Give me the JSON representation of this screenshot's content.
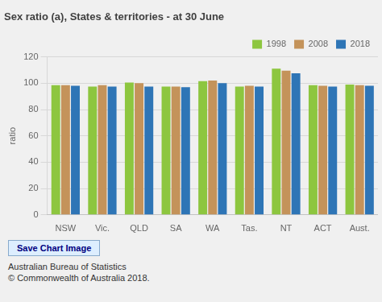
{
  "chart_data": {
    "type": "bar",
    "title": "Sex ratio (a), States & territories - at 30 June",
    "ylabel": "ratio",
    "categories": [
      "NSW",
      "Vic.",
      "QLD",
      "SA",
      "WA",
      "Tas.",
      "NT",
      "ACT",
      "Aust."
    ],
    "series": [
      {
        "name": "1998",
        "color": "#8DC63F",
        "values": [
          98.5,
          97.5,
          100.5,
          97.5,
          101.5,
          97.5,
          111.0,
          98.5,
          99.0
        ]
      },
      {
        "name": "2008",
        "color": "#C4935A",
        "values": [
          98.5,
          98.5,
          100.0,
          97.5,
          102.0,
          98.0,
          109.5,
          98.0,
          98.5
        ]
      },
      {
        "name": "2018",
        "color": "#2E75B6",
        "values": [
          98.0,
          97.5,
          97.5,
          97.0,
          100.0,
          97.5,
          107.5,
          97.5,
          98.0
        ]
      }
    ],
    "ylim": [
      0,
      120
    ],
    "yticks": [
      0,
      20,
      40,
      60,
      80,
      100,
      120
    ],
    "grid": true,
    "legend": "upper right",
    "annotations": [
      "Save Chart Image",
      "Australian Bureau of Statistics",
      "© Commonwealth of Australia 2018."
    ]
  }
}
